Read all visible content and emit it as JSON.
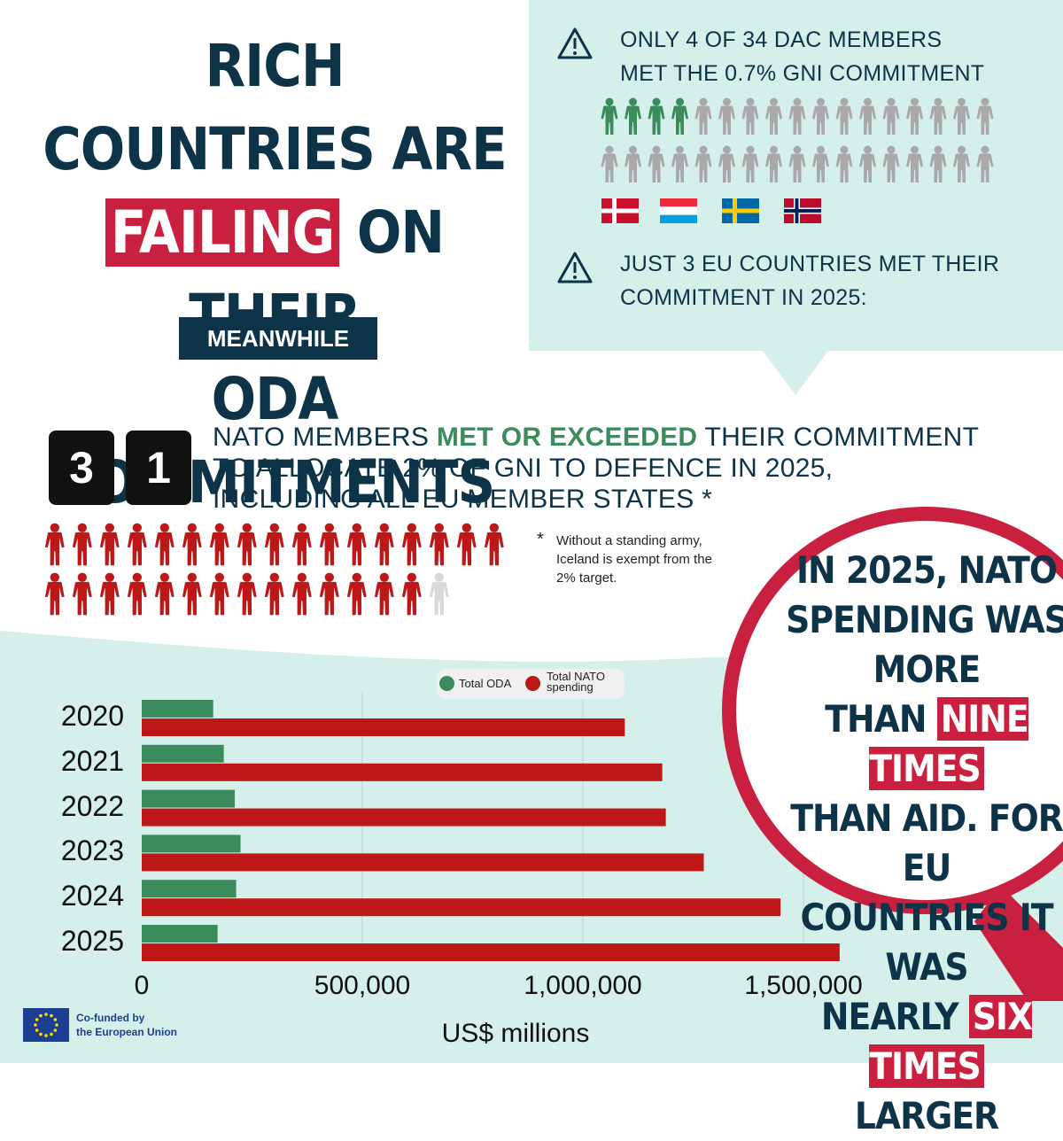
{
  "title": {
    "line1": "RICH COUNTRIES ARE",
    "highlight": "FAILING",
    "line2_rest": " ON THEIR",
    "line3": "ODA COMMITMENTS"
  },
  "meanwhile": "MEANWHILE",
  "dac": {
    "heading_line1": "ONLY 4 OF 34 DAC MEMBERS",
    "heading_line2": "MET THE 0.7% GNI COMMITMENT",
    "met": 4,
    "total": 34,
    "flags": [
      "denmark-flag",
      "luxembourg-flag",
      "sweden-flag",
      "norway-flag"
    ],
    "eu_line1": "JUST 3 EU COUNTRIES MET THEIR",
    "eu_line2": "COMMITMENT IN 2025:"
  },
  "nato": {
    "digit1": "3",
    "digit2": "1",
    "text_pre": "NATO MEMBERS ",
    "text_green": "MET OR EXCEEDED",
    "text_post": " THEIR COMMITMENT",
    "line2": "TO ALLOCATE 2% OF GNI TO DEFENCE IN 2025,",
    "line3": "INCLUDING ALL EU MEMBER STATES *",
    "met": 31,
    "total": 32,
    "footnote_star": "*",
    "footnote": "Without  a standing army, Iceland is exempt from the 2% target."
  },
  "magnifier": {
    "l1": "IN 2025, NATO",
    "l2": "SPENDING WAS MORE",
    "l3_pre": "THAN ",
    "l3_hl": "NINE TIMES",
    "l4": "THAN AID. FOR EU",
    "l5": "COUNTRIES IT WAS",
    "l6_pre": "NEARLY ",
    "l6_hl": "SIX TIMES",
    "l7": "LARGER"
  },
  "chart_data": {
    "type": "bar",
    "orientation": "horizontal",
    "categories": [
      "2020",
      "2021",
      "2022",
      "2023",
      "2024",
      "2025"
    ],
    "series": [
      {
        "name": "Total ODA",
        "color": "#3a8c5c",
        "values": [
          162000,
          186000,
          211000,
          224000,
          214000,
          172000
        ]
      },
      {
        "name": "Total NATO spending",
        "color": "#be1717",
        "values": [
          1095000,
          1180000,
          1188000,
          1274000,
          1448000,
          1582000
        ]
      }
    ],
    "xlabel": "US$ millions",
    "xticks": [
      "0",
      "500,000",
      "1,000,000",
      "1,500,000"
    ],
    "xlim": [
      0,
      1900000
    ],
    "legend": {
      "placement": "top",
      "labels": [
        "Total ODA",
        "Total NATO spending"
      ]
    },
    "grid": true
  },
  "eu_logo": {
    "line1": "Co-funded by",
    "line2": "the European Union"
  },
  "colors": {
    "navy": "#0d3349",
    "red": "#c8203e",
    "mint": "#d5efea",
    "green": "#3a8c5c",
    "bar_red": "#be1717",
    "grey": "#a9a9a9"
  }
}
